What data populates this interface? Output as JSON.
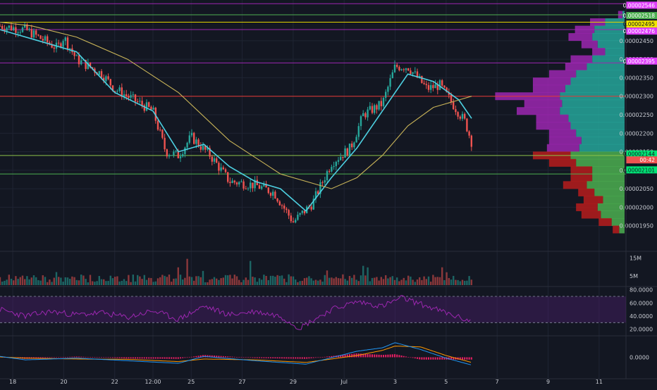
{
  "chart_data": {
    "type": "candlestick",
    "x_axis": {
      "tick_labels": [
        "18",
        "20",
        "22",
        "12:00",
        "25",
        "27",
        "29",
        "Jul",
        "3",
        "5",
        "7",
        "9",
        "11"
      ],
      "tick_dates": [
        "2019-06-18",
        "2019-06-20",
        "2019-06-22",
        "2019-06-23T12:00",
        "2019-06-25",
        "2019-06-27",
        "2019-06-29",
        "2019-07-01",
        "2019-07-03",
        "2019-07-05",
        "2019-07-07",
        "2019-07-09",
        "2019-07-11"
      ]
    },
    "price_axis": {
      "range": [
        1.9e-05,
        2.56e-05
      ],
      "tick_labels": [
        "0.00002450",
        "0.00002400",
        "0.00002350",
        "0.00002300",
        "0.00002250",
        "0.00002200",
        "0.00002150",
        "0.00002100",
        "0.00002050",
        "0.00002000",
        "0.00001950"
      ],
      "tick_values": [
        2.45e-05,
        2.4e-05,
        2.35e-05,
        2.3e-05,
        2.25e-05,
        2.2e-05,
        2.15e-05,
        2.1e-05,
        2.05e-05,
        2e-05,
        1.95e-05
      ]
    },
    "price_series_keypoints": [
      {
        "x": "2019-06-17T12:00",
        "y": 2.49e-05
      },
      {
        "x": "2019-06-18T12:00",
        "y": 2.48e-05
      },
      {
        "x": "2019-06-19T06:00",
        "y": 2.45e-05
      },
      {
        "x": "2019-06-19T18:00",
        "y": 2.43e-05
      },
      {
        "x": "2019-06-20T00:00",
        "y": 2.46e-05
      },
      {
        "x": "2019-06-20T12:00",
        "y": 2.4e-05
      },
      {
        "x": "2019-06-21T12:00",
        "y": 2.36e-05
      },
      {
        "x": "2019-06-22T00:00",
        "y": 2.32e-05
      },
      {
        "x": "2019-06-22T18:00",
        "y": 2.29e-05
      },
      {
        "x": "2019-06-23T12:00",
        "y": 2.26e-05
      },
      {
        "x": "2019-06-24T00:00",
        "y": 2.15e-05
      },
      {
        "x": "2019-06-24T12:00",
        "y": 2.14e-05
      },
      {
        "x": "2019-06-25T00:00",
        "y": 2.19e-05
      },
      {
        "x": "2019-06-25T18:00",
        "y": 2.14e-05
      },
      {
        "x": "2019-06-26T12:00",
        "y": 2.07e-05
      },
      {
        "x": "2019-06-27T12:00",
        "y": 2.06e-05
      },
      {
        "x": "2019-06-28T06:00",
        "y": 2.04e-05
      },
      {
        "x": "2019-06-29T00:00",
        "y": 1.96e-05
      },
      {
        "x": "2019-06-29T18:00",
        "y": 2.01e-05
      },
      {
        "x": "2019-06-30T12:00",
        "y": 2.12e-05
      },
      {
        "x": "2019-07-01T06:00",
        "y": 2.16e-05
      },
      {
        "x": "2019-07-01T18:00",
        "y": 2.25e-05
      },
      {
        "x": "2019-07-02T12:00",
        "y": 2.28e-05
      },
      {
        "x": "2019-07-03T00:00",
        "y": 2.38e-05
      },
      {
        "x": "2019-07-03T12:00",
        "y": 2.38e-05
      },
      {
        "x": "2019-07-04T06:00",
        "y": 2.32e-05
      },
      {
        "x": "2019-07-04T18:00",
        "y": 2.33e-05
      },
      {
        "x": "2019-07-05T06:00",
        "y": 2.28e-05
      },
      {
        "x": "2019-07-05T18:00",
        "y": 2.23e-05
      },
      {
        "x": "2019-07-06T00:00",
        "y": 2.176e-05
      }
    ],
    "moving_averages": [
      {
        "color": "#4dd0e1",
        "keypoints": [
          {
            "x": "2019-06-17T12:00",
            "y": 2.48e-05
          },
          {
            "x": "2019-06-19T00:00",
            "y": 2.45e-05
          },
          {
            "x": "2019-06-20T12:00",
            "y": 2.42e-05
          },
          {
            "x": "2019-06-22T00:00",
            "y": 2.31e-05
          },
          {
            "x": "2019-06-23T12:00",
            "y": 2.26e-05
          },
          {
            "x": "2019-06-24T12:00",
            "y": 2.15e-05
          },
          {
            "x": "2019-06-25T12:00",
            "y": 2.17e-05
          },
          {
            "x": "2019-06-26T12:00",
            "y": 2.11e-05
          },
          {
            "x": "2019-06-27T12:00",
            "y": 2.07e-05
          },
          {
            "x": "2019-06-28T12:00",
            "y": 2.05e-05
          },
          {
            "x": "2019-06-29T12:00",
            "y": 1.99e-05
          },
          {
            "x": "2019-06-30T12:00",
            "y": 2.08e-05
          },
          {
            "x": "2019-07-01T12:00",
            "y": 2.16e-05
          },
          {
            "x": "2019-07-02T12:00",
            "y": 2.26e-05
          },
          {
            "x": "2019-07-03T12:00",
            "y": 2.36e-05
          },
          {
            "x": "2019-07-04T12:00",
            "y": 2.34e-05
          },
          {
            "x": "2019-07-05T12:00",
            "y": 2.29e-05
          },
          {
            "x": "2019-07-06T00:00",
            "y": 2.24e-05
          }
        ]
      },
      {
        "color": "#c9b458",
        "keypoints": [
          {
            "x": "2019-06-17T12:00",
            "y": 2.5e-05
          },
          {
            "x": "2019-06-18T18:00",
            "y": 2.49e-05
          },
          {
            "x": "2019-06-20T12:00",
            "y": 2.46e-05
          },
          {
            "x": "2019-06-22T12:00",
            "y": 2.4e-05
          },
          {
            "x": "2019-06-24T12:00",
            "y": 2.31e-05
          },
          {
            "x": "2019-06-26T12:00",
            "y": 2.18e-05
          },
          {
            "x": "2019-06-28T12:00",
            "y": 2.09e-05
          },
          {
            "x": "2019-06-30T12:00",
            "y": 2.05e-05
          },
          {
            "x": "2019-07-01T12:00",
            "y": 2.08e-05
          },
          {
            "x": "2019-07-02T12:00",
            "y": 2.14e-05
          },
          {
            "x": "2019-07-03T12:00",
            "y": 2.22e-05
          },
          {
            "x": "2019-07-04T12:00",
            "y": 2.27e-05
          },
          {
            "x": "2019-07-05T12:00",
            "y": 2.29e-05
          },
          {
            "x": "2019-07-06T00:00",
            "y": 2.3e-05
          }
        ]
      }
    ],
    "horizontal_levels": [
      {
        "value": 2.55e-05,
        "color": "#9c27b0"
      },
      {
        "value": 2.52e-05,
        "color": "#4caf50"
      },
      {
        "value": 2.5e-05,
        "color": "#e0d000"
      },
      {
        "value": 2.48e-05,
        "color": "#9c27b0"
      },
      {
        "value": 2.39e-05,
        "color": "#9c27b0"
      },
      {
        "value": 2.3e-05,
        "color": "#e53935"
      },
      {
        "value": 2.14e-05,
        "color": "#8bc34a"
      },
      {
        "value": 2.09e-05,
        "color": "#4caf50"
      }
    ],
    "price_labels": [
      {
        "text": "0.00002546",
        "value": 2.546e-05,
        "bg": "#e040fb",
        "fg": "#ffffff"
      },
      {
        "text": "0.00002518",
        "value": 2.518e-05,
        "bg": "#4caf50",
        "fg": "#ffffff"
      },
      {
        "text": "0.00002495",
        "value": 2.495e-05,
        "bg": "#f1e600",
        "fg": "#131722"
      },
      {
        "text": "0.00002476",
        "value": 2.476e-05,
        "bg": "#e040fb",
        "fg": "#ffffff"
      },
      {
        "text": "0.00002395",
        "value": 2.395e-05,
        "bg": "#e040fb",
        "fg": "#ffffff"
      },
      {
        "text": "0.00002144",
        "value": 2.144e-05,
        "bg": "#00e676",
        "fg": "#131722"
      },
      {
        "text": "00:42",
        "value": 2.128e-05,
        "bg": "#ef5350",
        "fg": "#ffffff"
      },
      {
        "text": "0.00002101",
        "value": 2.101e-05,
        "bg": "#00e676",
        "fg": "#131722"
      }
    ],
    "volume_profile": {
      "unit": "relative (0-1)",
      "rows": [
        {
          "price": 2.52e-05,
          "up": 0.02,
          "down": 0.04
        },
        {
          "price": 2.5e-05,
          "up": 0.18,
          "down": 0.14
        },
        {
          "price": 2.48e-05,
          "up": 0.28,
          "down": 0.18
        },
        {
          "price": 2.46e-05,
          "up": 0.3,
          "down": 0.22
        },
        {
          "price": 2.44e-05,
          "up": 0.25,
          "down": 0.15
        },
        {
          "price": 2.42e-05,
          "up": 0.18,
          "down": 0.12
        },
        {
          "price": 2.4e-05,
          "up": 0.3,
          "down": 0.2
        },
        {
          "price": 2.38e-05,
          "up": 0.35,
          "down": 0.2
        },
        {
          "price": 2.36e-05,
          "up": 0.45,
          "down": 0.25
        },
        {
          "price": 2.34e-05,
          "up": 0.5,
          "down": 0.35
        },
        {
          "price": 2.32e-05,
          "up": 0.55,
          "down": 0.3
        },
        {
          "price": 2.3e-05,
          "up": 0.6,
          "down": 0.6
        },
        {
          "price": 2.28e-05,
          "up": 0.58,
          "down": 0.35
        },
        {
          "price": 2.26e-05,
          "up": 0.6,
          "down": 0.4
        },
        {
          "price": 2.24e-05,
          "up": 0.52,
          "down": 0.3
        },
        {
          "price": 2.22e-05,
          "up": 0.5,
          "down": 0.32
        },
        {
          "price": 2.2e-05,
          "up": 0.45,
          "down": 0.25
        },
        {
          "price": 2.18e-05,
          "up": 0.4,
          "down": 0.3
        },
        {
          "price": 2.16e-05,
          "up": 0.42,
          "down": 0.3
        },
        {
          "price": 2.14e-05,
          "up": 0.5,
          "down": 0.35
        },
        {
          "price": 2.12e-05,
          "up": 0.45,
          "down": 0.25
        },
        {
          "price": 2.1e-05,
          "up": 0.3,
          "down": 0.2
        },
        {
          "price": 2.08e-05,
          "up": 0.3,
          "down": 0.2
        },
        {
          "price": 2.06e-05,
          "up": 0.35,
          "down": 0.22
        },
        {
          "price": 2.04e-05,
          "up": 0.28,
          "down": 0.15
        },
        {
          "price": 2.02e-05,
          "up": 0.2,
          "down": 0.18
        },
        {
          "price": 2e-05,
          "up": 0.25,
          "down": 0.2
        },
        {
          "price": 1.98e-05,
          "up": 0.22,
          "down": 0.18
        },
        {
          "price": 1.96e-05,
          "up": 0.12,
          "down": 0.12
        },
        {
          "price": 1.94e-05,
          "up": 0.05,
          "down": 0.06
        }
      ],
      "up_color_upper": "#26a69a",
      "down_color_upper": "#9c27b0",
      "up_color_lower": "#4caf50",
      "down_color_lower": "#b71c1c",
      "split_price": 2.14e-05
    },
    "volume_pane": {
      "tick_labels": [
        "15M",
        "5M"
      ],
      "tick_values": [
        15000000,
        5000000
      ],
      "range": [
        0,
        18000000
      ]
    },
    "rsi_pane": {
      "tick_labels": [
        "80.0000",
        "60.0000",
        "40.0000",
        "20.0000"
      ],
      "tick_values": [
        80,
        60,
        40,
        20
      ],
      "range": [
        10,
        85
      ],
      "band": [
        30,
        70
      ],
      "line_color": "#9c27b0",
      "keypoints": [
        {
          "x": "2019-06-17T12:00",
          "y": 50
        },
        {
          "x": "2019-06-18T12:00",
          "y": 40
        },
        {
          "x": "2019-06-19T12:00",
          "y": 47
        },
        {
          "x": "2019-06-20T12:00",
          "y": 42
        },
        {
          "x": "2019-06-21T12:00",
          "y": 45
        },
        {
          "x": "2019-06-22T12:00",
          "y": 38
        },
        {
          "x": "2019-06-23T12:00",
          "y": 48
        },
        {
          "x": "2019-06-24T12:00",
          "y": 35
        },
        {
          "x": "2019-06-25T12:00",
          "y": 55
        },
        {
          "x": "2019-06-26T12:00",
          "y": 42
        },
        {
          "x": "2019-06-27T12:00",
          "y": 47
        },
        {
          "x": "2019-06-28T12:00",
          "y": 40
        },
        {
          "x": "2019-06-29T06:00",
          "y": 22
        },
        {
          "x": "2019-06-30T12:00",
          "y": 50
        },
        {
          "x": "2019-07-01T12:00",
          "y": 62
        },
        {
          "x": "2019-07-02T12:00",
          "y": 55
        },
        {
          "x": "2019-07-03T06:00",
          "y": 68
        },
        {
          "x": "2019-07-04T06:00",
          "y": 55
        },
        {
          "x": "2019-07-05T12:00",
          "y": 38
        },
        {
          "x": "2019-07-06T00:00",
          "y": 32
        }
      ]
    },
    "macd_pane": {
      "tick_labels": [
        "0.0000"
      ],
      "tick_values": [
        0
      ],
      "range": [
        -1,
        1
      ],
      "macd_color": "#2196f3",
      "signal_color": "#ff9800",
      "histogram_color": "#e91e63",
      "keypoints": [
        {
          "x": "2019-06-17T12:00",
          "macd": 0.05,
          "signal": 0.02
        },
        {
          "x": "2019-06-18T12:00",
          "macd": -0.15,
          "signal": -0.05
        },
        {
          "x": "2019-06-20T12:00",
          "macd": -0.05,
          "signal": -0.1
        },
        {
          "x": "2019-06-22T12:00",
          "macd": -0.2,
          "signal": -0.12
        },
        {
          "x": "2019-06-24T12:00",
          "macd": -0.35,
          "signal": -0.25
        },
        {
          "x": "2019-06-25T12:00",
          "macd": 0.05,
          "signal": -0.1
        },
        {
          "x": "2019-06-27T12:00",
          "macd": -0.2,
          "signal": -0.15
        },
        {
          "x": "2019-06-29T12:00",
          "macd": -0.4,
          "signal": -0.3
        },
        {
          "x": "2019-07-01T12:00",
          "macd": 0.35,
          "signal": 0.1
        },
        {
          "x": "2019-07-02T12:00",
          "macd": 0.55,
          "signal": 0.4
        },
        {
          "x": "2019-07-03T00:00",
          "macd": 0.85,
          "signal": 0.65
        },
        {
          "x": "2019-07-04T00:00",
          "macd": 0.45,
          "signal": 0.6
        },
        {
          "x": "2019-07-05T00:00",
          "macd": -0.05,
          "signal": 0.1
        },
        {
          "x": "2019-07-06T00:00",
          "macd": -0.45,
          "signal": -0.3
        }
      ]
    },
    "colors": {
      "background": "#131722",
      "grid": "#1f2433",
      "axis_text": "#c9ccd3",
      "bull": "#26a69a",
      "bear": "#ef5350"
    }
  }
}
